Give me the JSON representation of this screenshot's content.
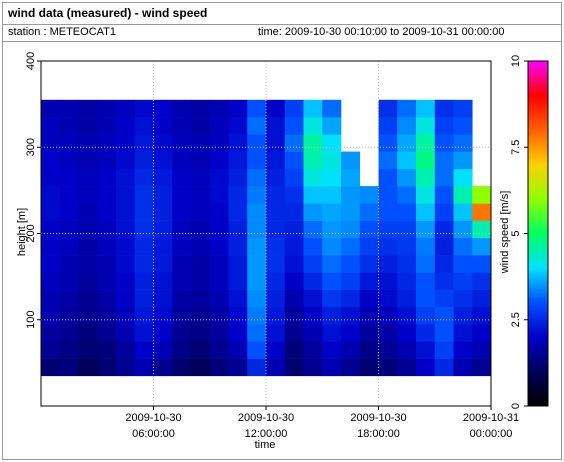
{
  "chart_data": {
    "type": "heatmap",
    "title": "wind data (measured) - wind speed",
    "station": "station : METEOCAT1",
    "time_range": "time: 2009-10-30 00:10:00 to 2009-10-31 00:00:00",
    "xlabel": "time",
    "ylabel": "height [m]",
    "colorbar_label": "wind speed [m/s]",
    "x": [
      "2009-10-30 00:30:00",
      "2009-10-30 01:30:00",
      "2009-10-30 02:30:00",
      "2009-10-30 03:30:00",
      "2009-10-30 04:30:00",
      "2009-10-30 05:30:00",
      "2009-10-30 06:30:00",
      "2009-10-30 07:30:00",
      "2009-10-30 08:30:00",
      "2009-10-30 09:30:00",
      "2009-10-30 10:30:00",
      "2009-10-30 11:30:00",
      "2009-10-30 12:30:00",
      "2009-10-30 13:30:00",
      "2009-10-30 14:30:00",
      "2009-10-30 15:30:00",
      "2009-10-30 16:30:00",
      "2009-10-30 17:30:00",
      "2009-10-30 18:30:00",
      "2009-10-30 19:30:00",
      "2009-10-30 20:30:00",
      "2009-10-30 21:30:00",
      "2009-10-30 22:30:00",
      "2009-10-30 23:30:00"
    ],
    "y": [
      45,
      65,
      85,
      105,
      125,
      145,
      165,
      185,
      205,
      225,
      245,
      265,
      285,
      305,
      325,
      345
    ],
    "z": [
      [
        1.2,
        1.3,
        1.0,
        1.2,
        1.5,
        1.8,
        1.5,
        1.2,
        1.0,
        1.3,
        1.5,
        2.5,
        1.8,
        1.2,
        1.5,
        1.8,
        1.5,
        1.2,
        1.3,
        1.5,
        2.0,
        2.5,
        1.8,
        1.5
      ],
      [
        1.5,
        1.4,
        1.2,
        1.3,
        1.6,
        2.0,
        1.8,
        1.4,
        1.2,
        1.5,
        1.8,
        3.0,
        2.0,
        1.3,
        1.6,
        2.0,
        1.8,
        1.4,
        1.5,
        1.8,
        2.2,
        2.8,
        2.0,
        1.8
      ],
      [
        1.6,
        1.5,
        1.3,
        1.5,
        1.8,
        2.2,
        2.0,
        1.5,
        1.4,
        1.6,
        2.0,
        3.2,
        2.2,
        1.5,
        1.8,
        2.2,
        2.0,
        1.6,
        1.7,
        2.0,
        2.5,
        3.0,
        2.2,
        2.0
      ],
      [
        1.8,
        1.6,
        1.5,
        1.6,
        1.9,
        2.3,
        2.1,
        1.6,
        1.5,
        1.7,
        2.1,
        3.3,
        2.3,
        1.6,
        2.0,
        2.4,
        2.2,
        1.8,
        1.9,
        2.2,
        2.8,
        3.0,
        2.4,
        2.2
      ],
      [
        1.8,
        1.7,
        1.5,
        1.7,
        2.0,
        2.4,
        2.2,
        1.7,
        1.6,
        1.8,
        2.2,
        3.4,
        2.4,
        1.8,
        2.2,
        2.7,
        2.5,
        2.0,
        2.1,
        2.4,
        3.0,
        2.8,
        2.6,
        2.4
      ],
      [
        1.9,
        1.8,
        1.6,
        1.8,
        2.0,
        2.4,
        2.2,
        1.8,
        1.7,
        1.9,
        2.3,
        3.5,
        2.5,
        2.0,
        2.5,
        3.0,
        2.8,
        2.3,
        2.2,
        2.5,
        3.0,
        2.6,
        2.8,
        2.6
      ],
      [
        2.0,
        1.8,
        1.7,
        1.8,
        2.1,
        2.5,
        2.3,
        1.8,
        1.7,
        1.9,
        2.3,
        3.5,
        2.6,
        2.2,
        2.8,
        3.2,
        3.0,
        2.6,
        2.4,
        2.6,
        3.2,
        2.5,
        3.0,
        3.0
      ],
      [
        2.0,
        1.9,
        1.7,
        1.9,
        2.1,
        2.5,
        2.3,
        1.9,
        1.8,
        2.0,
        2.4,
        3.5,
        2.6,
        2.3,
        3.0,
        3.4,
        3.2,
        2.8,
        2.6,
        2.7,
        3.3,
        2.4,
        3.2,
        3.5
      ],
      [
        2.0,
        1.9,
        1.8,
        1.9,
        2.2,
        2.6,
        2.4,
        1.9,
        1.8,
        2.0,
        2.4,
        3.4,
        2.5,
        2.4,
        3.2,
        3.5,
        3.4,
        3.0,
        2.8,
        2.8,
        3.5,
        2.5,
        3.5,
        4.5
      ],
      [
        2.1,
        2.0,
        1.8,
        2.0,
        2.2,
        2.6,
        2.4,
        2.0,
        1.9,
        2.0,
        2.5,
        3.4,
        2.5,
        2.5,
        3.5,
        3.6,
        3.5,
        3.2,
        3.0,
        3.0,
        3.8,
        2.8,
        3.8,
        7.8
      ],
      [
        2.1,
        2.0,
        1.9,
        2.0,
        2.2,
        2.6,
        2.4,
        2.0,
        1.9,
        2.1,
        2.5,
        3.3,
        2.5,
        2.6,
        3.8,
        3.8,
        3.5,
        3.4,
        3.0,
        3.2,
        4.2,
        3.0,
        4.5,
        6.0
      ],
      [
        2.0,
        2.0,
        1.9,
        2.0,
        2.2,
        2.5,
        2.3,
        2.0,
        1.9,
        2.1,
        2.4,
        3.2,
        2.4,
        2.8,
        4.2,
        4.0,
        3.6,
        null,
        3.0,
        3.5,
        4.5,
        3.2,
        4.0,
        null
      ],
      [
        2.0,
        1.9,
        1.8,
        1.9,
        2.1,
        2.4,
        2.2,
        1.9,
        1.8,
        2.0,
        2.3,
        3.0,
        2.3,
        3.0,
        4.5,
        4.2,
        3.5,
        null,
        3.2,
        3.8,
        4.8,
        3.2,
        3.5,
        null
      ],
      [
        1.9,
        1.9,
        1.8,
        1.9,
        2.0,
        2.3,
        2.1,
        1.9,
        1.8,
        1.9,
        2.2,
        3.0,
        2.2,
        3.2,
        4.6,
        4.0,
        null,
        null,
        3.0,
        3.6,
        4.6,
        3.0,
        3.2,
        null
      ],
      [
        1.9,
        1.8,
        1.7,
        1.8,
        2.0,
        2.2,
        2.0,
        1.8,
        1.7,
        1.9,
        2.1,
        3.2,
        2.2,
        3.0,
        4.2,
        3.6,
        null,
        null,
        2.8,
        3.4,
        4.2,
        2.8,
        3.0,
        null
      ],
      [
        1.8,
        1.8,
        1.7,
        1.8,
        1.9,
        2.1,
        2.0,
        1.8,
        1.7,
        1.8,
        2.0,
        3.0,
        2.0,
        2.8,
        3.8,
        3.2,
        null,
        null,
        2.6,
        3.2,
        3.8,
        2.6,
        2.8,
        null
      ]
    ],
    "xlim": [
      "2009-10-30 00:00:00",
      "2009-10-31 00:00:00"
    ],
    "xticks": [
      "2009-10-30 06:00:00",
      "2009-10-30 12:00:00",
      "2009-10-30 18:00:00",
      "2009-10-31 00:00:00"
    ],
    "ylim": [
      0,
      400
    ],
    "yticks": [
      100,
      200,
      300,
      400
    ],
    "zlim": [
      0,
      10
    ],
    "zticks": [
      0,
      2.5,
      5,
      7.5,
      10
    ],
    "colorscale": [
      "#000000",
      "#00005a",
      "#0000c8",
      "#0050ff",
      "#00e0ff",
      "#00ff60",
      "#90ff00",
      "#ffd000",
      "#ff6000",
      "#ff0000",
      "#ff00ff"
    ],
    "grid": true
  }
}
